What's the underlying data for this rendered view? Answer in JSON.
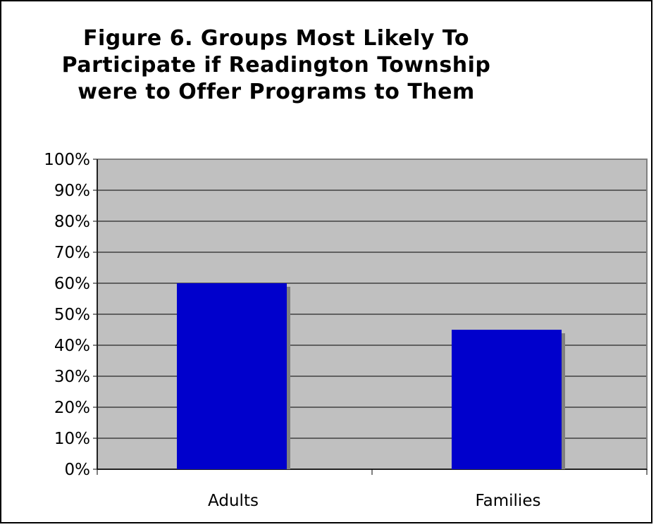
{
  "chart_data": {
    "type": "bar",
    "title_lines": [
      "Figure 6. Groups Most Likely To",
      "Participate if Readington Township",
      "were to Offer Programs to Them"
    ],
    "categories": [
      "Adults",
      "Families"
    ],
    "values": [
      60,
      45
    ],
    "value_unit": "%",
    "ylim": [
      0,
      100
    ],
    "yticks": [
      "0%",
      "10%",
      "20%",
      "30%",
      "40%",
      "50%",
      "60%",
      "70%",
      "80%",
      "90%",
      "100%"
    ],
    "grid": true,
    "legend": false,
    "colors": {
      "bar": "#0000CC",
      "bar_shadow": "#808080",
      "plot_background": "#C0C0C0",
      "gridline": "#000000"
    }
  }
}
